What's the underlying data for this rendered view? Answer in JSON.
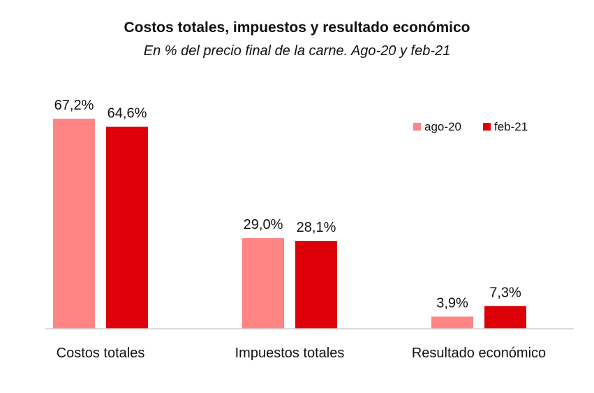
{
  "chart_data": {
    "type": "bar",
    "title": "Costos totales, impuestos y resultado económico",
    "subtitle": "En % del precio final de la carne. Ago-20 y feb-21",
    "categories": [
      "Costos totales",
      "Impuestos totales",
      "Resultado económico"
    ],
    "series": [
      {
        "name": "ago-20",
        "values": [
          67.2,
          29.0,
          3.9
        ],
        "labels": [
          "67,2%",
          "29,0%",
          "3,9%"
        ],
        "color": "#FF8585"
      },
      {
        "name": "feb-21",
        "values": [
          64.6,
          28.1,
          7.3
        ],
        "labels": [
          "64,6%",
          "28,1%",
          "7,3%"
        ],
        "color": "#DD0009"
      }
    ],
    "ylim": [
      0,
      67.2
    ],
    "grid": false,
    "legend_position": "top-right"
  }
}
